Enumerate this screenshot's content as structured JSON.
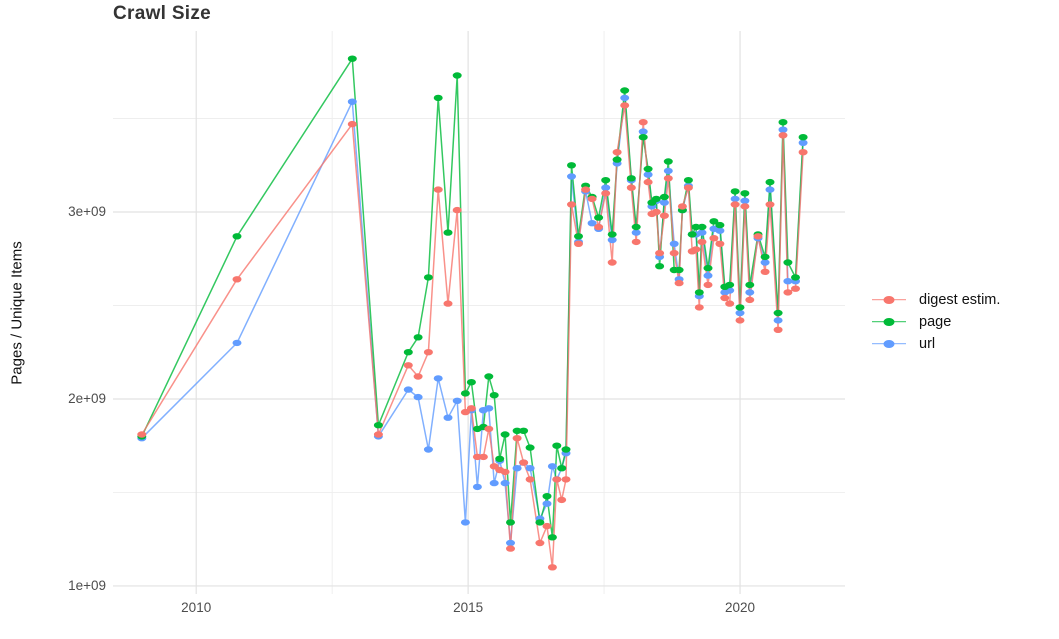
{
  "chart_data": {
    "type": "line",
    "title": "Crawl Size",
    "xlabel": "",
    "ylabel": "Pages / Unique Items",
    "value_unit": "1e+09 pages / unique items",
    "x_ticks": [
      {
        "value": 2010,
        "label": "2010"
      },
      {
        "value": 2015,
        "label": "2015"
      },
      {
        "value": 2020,
        "label": "2020"
      }
    ],
    "y_ticks": [
      {
        "value": 1.0,
        "label": "1e+09"
      },
      {
        "value": 2.0,
        "label": "2e+09"
      },
      {
        "value": 3.0,
        "label": "3e+09"
      }
    ],
    "x_minor": [
      2012.5,
      2017.5
    ],
    "y_minor": [
      1.5,
      2.5,
      3.5
    ],
    "xlim": [
      2008.47,
      2021.93
    ],
    "ylim": [
      0.957,
      3.968
    ],
    "grid": true,
    "legend_position": "right",
    "marker": "ellipse",
    "x": [
      2009.0,
      2010.75,
      2012.87,
      2013.35,
      2013.9,
      2014.08,
      2014.27,
      2014.45,
      2014.63,
      2014.8,
      2014.95,
      2015.06,
      2015.17,
      2015.28,
      2015.38,
      2015.48,
      2015.58,
      2015.68,
      2015.78,
      2015.9,
      2016.02,
      2016.14,
      2016.32,
      2016.45,
      2016.55,
      2016.63,
      2016.72,
      2016.8,
      2016.9,
      2017.03,
      2017.16,
      2017.28,
      2017.4,
      2017.53,
      2017.65,
      2017.74,
      2017.88,
      2018.0,
      2018.09,
      2018.22,
      2018.31,
      2018.38,
      2018.46,
      2018.52,
      2018.61,
      2018.68,
      2018.79,
      2018.88,
      2018.94,
      2019.05,
      2019.12,
      2019.19,
      2019.25,
      2019.3,
      2019.41,
      2019.52,
      2019.63,
      2019.72,
      2019.81,
      2019.91,
      2020.0,
      2020.09,
      2020.18,
      2020.33,
      2020.46,
      2020.55,
      2020.7,
      2020.79,
      2020.88,
      2021.02,
      2021.16
    ],
    "series": [
      {
        "name": "digest estim.",
        "color": "#F8766D",
        "values": [
          1.81,
          2.64,
          3.47,
          1.81,
          2.18,
          2.12,
          2.25,
          3.12,
          2.51,
          3.01,
          1.93,
          1.95,
          1.69,
          1.69,
          1.84,
          1.64,
          1.62,
          1.61,
          1.2,
          1.79,
          1.66,
          1.57,
          1.23,
          1.32,
          1.1,
          1.57,
          1.46,
          1.57,
          3.04,
          2.83,
          3.12,
          3.07,
          2.92,
          3.1,
          2.73,
          3.32,
          3.57,
          3.13,
          2.84,
          3.48,
          3.16,
          2.99,
          3.0,
          2.78,
          2.98,
          3.18,
          2.78,
          2.62,
          3.03,
          3.13,
          2.79,
          2.8,
          2.49,
          2.84,
          2.61,
          2.86,
          2.83,
          2.54,
          2.51,
          3.04,
          2.42,
          3.03,
          2.53,
          2.87,
          2.68,
          3.04,
          2.37,
          3.41,
          2.57,
          2.59,
          3.32
        ]
      },
      {
        "name": "page",
        "color": "#00BA38",
        "values": [
          1.8,
          2.87,
          3.82,
          1.86,
          2.25,
          2.33,
          2.65,
          3.61,
          2.89,
          3.73,
          2.03,
          2.09,
          1.84,
          1.85,
          2.12,
          2.02,
          1.68,
          1.81,
          1.34,
          1.83,
          1.83,
          1.74,
          1.34,
          1.48,
          1.26,
          1.75,
          1.63,
          1.73,
          3.25,
          2.87,
          3.14,
          3.08,
          2.97,
          3.17,
          2.88,
          3.28,
          3.65,
          3.18,
          2.92,
          3.4,
          3.23,
          3.05,
          3.07,
          2.71,
          3.08,
          3.27,
          2.69,
          2.69,
          3.01,
          3.17,
          2.88,
          2.92,
          2.57,
          2.92,
          2.7,
          2.95,
          2.93,
          2.6,
          2.61,
          3.11,
          2.49,
          3.1,
          2.61,
          2.88,
          2.76,
          3.16,
          2.46,
          3.48,
          2.73,
          2.65,
          3.4
        ]
      },
      {
        "name": "url",
        "color": "#619CFF",
        "values": [
          1.79,
          2.3,
          3.59,
          1.8,
          2.05,
          2.01,
          1.73,
          2.11,
          1.9,
          1.99,
          1.34,
          1.94,
          1.53,
          1.94,
          1.95,
          1.55,
          1.67,
          1.55,
          1.23,
          1.63,
          1.66,
          1.63,
          1.36,
          1.44,
          1.64,
          1.57,
          1.63,
          1.71,
          3.19,
          2.84,
          3.11,
          2.94,
          2.91,
          3.13,
          2.85,
          3.26,
          3.61,
          3.17,
          2.89,
          3.43,
          3.2,
          3.03,
          3.06,
          2.76,
          3.05,
          3.22,
          2.83,
          2.64,
          3.01,
          3.14,
          2.88,
          2.88,
          2.55,
          2.89,
          2.66,
          2.91,
          2.9,
          2.57,
          2.58,
          3.07,
          2.46,
          3.06,
          2.57,
          2.86,
          2.73,
          3.12,
          2.42,
          3.44,
          2.63,
          2.63,
          3.37
        ]
      }
    ],
    "style": {
      "grid_major_color": "#e2e2e2",
      "grid_minor_color": "#eeeeee",
      "tick_text_color": "#4d4d4d",
      "title_color": "#343434"
    }
  },
  "legend": {
    "items": [
      {
        "label": "digest estim.",
        "color": "#F8766D"
      },
      {
        "label": "page",
        "color": "#00BA38"
      },
      {
        "label": "url",
        "color": "#619CFF"
      }
    ]
  }
}
